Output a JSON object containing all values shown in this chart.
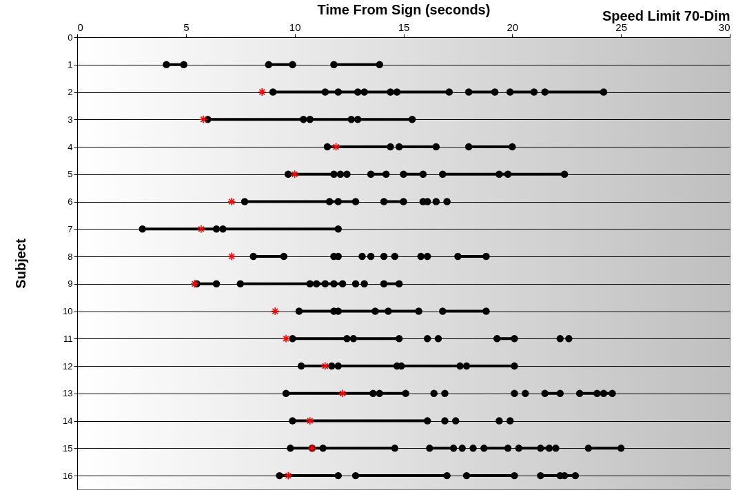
{
  "chart_data": {
    "type": "line",
    "title": "Speed Limit 70-Dim",
    "xlabel": "Time From Sign (seconds)",
    "ylabel": "Subject",
    "xlim": [
      0,
      30
    ],
    "xticks": [
      0,
      5,
      10,
      15,
      20,
      25,
      30
    ],
    "ylim": [
      16.5,
      0
    ],
    "yticks": [
      0,
      1,
      2,
      3,
      4,
      5,
      6,
      7,
      8,
      9,
      10,
      11,
      12,
      13,
      14,
      15,
      16
    ],
    "grid": "y",
    "line_style": "solid",
    "series": [
      {
        "color": "#000000",
        "marker": "circle",
        "x": [
          4.1,
          4.9
        ],
        "values": [
          1,
          1
        ]
      },
      {
        "color": "#000000",
        "marker": "circle",
        "x": [
          8.8,
          9.9
        ],
        "values": [
          1,
          1
        ]
      },
      {
        "color": "#000000",
        "marker": "circle",
        "x": [
          11.8,
          13.9
        ],
        "values": [
          1,
          1
        ]
      },
      {
        "color": "#000000",
        "marker": "circle",
        "x": [
          9.0,
          11.4,
          12.0,
          12.9,
          13.2,
          14.4,
          14.7,
          17.1
        ],
        "values": [
          2,
          2,
          2,
          2,
          2,
          2,
          2,
          2
        ]
      },
      {
        "color": "#000000",
        "marker": "circle",
        "x": [
          18.0,
          19.2
        ],
        "values": [
          2,
          2
        ]
      },
      {
        "color": "#000000",
        "marker": "circle",
        "x": [
          19.9,
          21.0
        ],
        "values": [
          2,
          2
        ]
      },
      {
        "color": "#000000",
        "marker": "circle",
        "x": [
          21.5,
          24.2
        ],
        "values": [
          2,
          2
        ]
      },
      {
        "color": "#000000",
        "marker": "circle",
        "x": [
          6.0,
          10.4,
          10.7,
          12.6,
          12.9,
          15.4
        ],
        "values": [
          3,
          3,
          3,
          3,
          3,
          3
        ]
      },
      {
        "color": "#000000",
        "marker": "circle",
        "x": [
          11.5,
          14.4
        ],
        "values": [
          4,
          4
        ]
      },
      {
        "color": "#000000",
        "marker": "circle",
        "x": [
          14.8,
          16.5
        ],
        "values": [
          4,
          4
        ]
      },
      {
        "color": "#000000",
        "marker": "circle",
        "x": [
          18.0,
          20.0
        ],
        "values": [
          4,
          4
        ]
      },
      {
        "color": "#000000",
        "marker": "circle",
        "x": [
          9.7,
          11.8,
          12.1,
          12.4
        ],
        "values": [
          5,
          5,
          5,
          5
        ]
      },
      {
        "color": "#000000",
        "marker": "circle",
        "x": [
          13.5,
          14.2
        ],
        "values": [
          5,
          5
        ]
      },
      {
        "color": "#000000",
        "marker": "circle",
        "x": [
          15.0,
          15.9
        ],
        "values": [
          5,
          5
        ]
      },
      {
        "color": "#000000",
        "marker": "circle",
        "x": [
          16.8,
          19.4,
          19.8,
          22.4
        ],
        "values": [
          5,
          5,
          5,
          5
        ]
      },
      {
        "color": "#000000",
        "marker": "circle",
        "x": [
          7.7,
          11.6,
          12.0,
          12.8
        ],
        "values": [
          6,
          6,
          6,
          6
        ]
      },
      {
        "color": "#000000",
        "marker": "circle",
        "x": [
          14.1,
          15.0
        ],
        "values": [
          6,
          6
        ]
      },
      {
        "color": "#000000",
        "marker": "circle",
        "x": [
          3.0,
          6.4,
          6.7,
          12.0
        ],
        "values": [
          7,
          7,
          7,
          7
        ]
      },
      {
        "color": "#000000",
        "marker": "circle",
        "x": [
          8.1,
          9.5
        ],
        "values": [
          8,
          8
        ]
      },
      {
        "color": "#000000",
        "marker": "circle",
        "x": [
          17.5,
          18.8
        ],
        "values": [
          8,
          8
        ]
      },
      {
        "color": "#000000",
        "marker": "circle",
        "x": [
          5.5,
          6.4
        ],
        "values": [
          9,
          9
        ]
      },
      {
        "color": "#000000",
        "marker": "circle",
        "x": [
          7.5,
          10.7,
          11.0,
          11.4,
          11.8,
          12.2
        ],
        "values": [
          9,
          9,
          9,
          9,
          9,
          9
        ]
      },
      {
        "color": "#000000",
        "marker": "circle",
        "x": [
          14.1,
          14.8
        ],
        "values": [
          9,
          9
        ]
      },
      {
        "color": "#000000",
        "marker": "circle",
        "x": [
          10.2,
          11.8,
          12.0,
          13.7,
          14.3,
          15.7
        ],
        "values": [
          10,
          10,
          10,
          10,
          10,
          10
        ]
      },
      {
        "color": "#000000",
        "marker": "circle",
        "x": [
          16.8,
          18.8
        ],
        "values": [
          10,
          10
        ]
      },
      {
        "color": "#000000",
        "marker": "circle",
        "x": [
          9.9,
          12.4,
          12.7,
          14.8
        ],
        "values": [
          11,
          11,
          11,
          11
        ]
      },
      {
        "color": "#000000",
        "marker": "circle",
        "x": [
          19.3,
          20.1
        ],
        "values": [
          11,
          11
        ]
      },
      {
        "color": "#000000",
        "marker": "circle",
        "x": [
          10.3,
          11.7,
          12.0,
          14.7,
          14.9,
          17.6,
          17.9,
          20.1
        ],
        "values": [
          12,
          12,
          12,
          12,
          12,
          12,
          12,
          12
        ]
      },
      {
        "color": "#000000",
        "marker": "circle",
        "x": [
          9.6,
          13.6,
          13.9,
          15.1
        ],
        "values": [
          13,
          13,
          13,
          13
        ]
      },
      {
        "color": "#000000",
        "marker": "circle",
        "x": [
          21.5,
          22.2
        ],
        "values": [
          13,
          13
        ]
      },
      {
        "color": "#000000",
        "marker": "circle",
        "x": [
          23.1,
          23.9,
          24.2,
          24.6
        ],
        "values": [
          13,
          13,
          13,
          13
        ]
      },
      {
        "color": "#000000",
        "marker": "circle",
        "x": [
          9.9,
          16.1
        ],
        "values": [
          14,
          14
        ]
      },
      {
        "color": "#000000",
        "marker": "circle",
        "x": [
          9.8,
          10.8,
          11.3,
          14.6
        ],
        "values": [
          15,
          15,
          15,
          15
        ]
      },
      {
        "color": "#000000",
        "marker": "circle",
        "x": [
          16.2,
          17.3
        ],
        "values": [
          15,
          15
        ]
      },
      {
        "color": "#000000",
        "marker": "circle",
        "x": [
          18.7,
          19.8
        ],
        "values": [
          15,
          15
        ]
      },
      {
        "color": "#000000",
        "marker": "circle",
        "x": [
          20.3,
          21.3,
          21.7,
          22.0
        ],
        "values": [
          15,
          15,
          15,
          15
        ]
      },
      {
        "color": "#000000",
        "marker": "circle",
        "x": [
          23.5,
          25.0
        ],
        "values": [
          15,
          15
        ]
      },
      {
        "color": "#000000",
        "marker": "circle",
        "x": [
          9.3,
          12.0
        ],
        "values": [
          16,
          16
        ]
      },
      {
        "color": "#000000",
        "marker": "circle",
        "x": [
          12.8,
          17.0
        ],
        "values": [
          16,
          16
        ]
      },
      {
        "color": "#000000",
        "marker": "circle",
        "x": [
          17.9,
          20.1
        ],
        "values": [
          16,
          16
        ]
      },
      {
        "color": "#000000",
        "marker": "circle",
        "x": [
          21.3,
          22.2,
          22.4,
          22.9
        ],
        "values": [
          16,
          16,
          16,
          16
        ]
      },
      {
        "type": "scatter",
        "color": "#000000",
        "marker": "circle",
        "x": [
          15.9,
          16.1,
          16.5,
          17.0,
          11.8,
          12.0,
          13.1,
          13.5,
          14.1,
          14.6,
          15.8,
          16.1,
          12.8,
          13.2,
          16.1,
          16.6,
          22.2,
          22.6,
          16.4,
          16.9,
          20.1,
          20.6,
          16.9,
          17.4,
          19.4,
          19.9,
          17.7,
          18.2
        ],
        "values": [
          6,
          6,
          6,
          6,
          8,
          8,
          8,
          8,
          8,
          8,
          8,
          8,
          9,
          9,
          11,
          11,
          11,
          11,
          13,
          13,
          13,
          13,
          14,
          14,
          14,
          14,
          15,
          15
        ]
      },
      {
        "type": "scatter",
        "color": "#ff0000",
        "marker": "cross",
        "x": [
          8.5,
          5.8,
          11.9,
          10.0,
          7.1,
          5.7,
          7.1,
          5.4,
          9.1,
          9.6,
          11.4,
          12.2,
          10.7,
          10.8,
          9.7
        ],
        "values": [
          2,
          3,
          4,
          5,
          6,
          7,
          8,
          9,
          10,
          11,
          12,
          13,
          14,
          15,
          16
        ]
      }
    ]
  }
}
